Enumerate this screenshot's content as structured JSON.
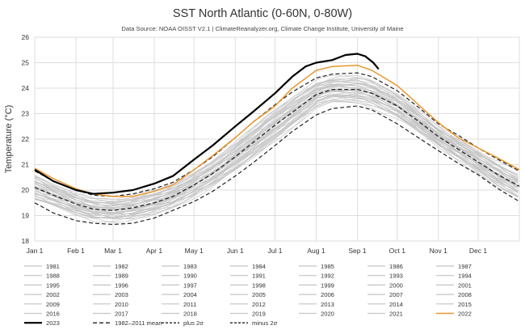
{
  "chart_data": {
    "type": "line",
    "title": "SST North Atlantic (0-60N, 0-80W)",
    "subtitle": "Data Source: NOAA OISST V2.1 | ClimateReanalyzer.org, Climate Change Institute, University of Maine",
    "ylabel": "Temperature (°C)",
    "xlabel": "",
    "ylim": [
      18,
      26
    ],
    "yticks": [
      18,
      19,
      20,
      21,
      22,
      23,
      24,
      25,
      26
    ],
    "xlim": [
      1,
      366
    ],
    "xticks": [
      {
        "label": "Jan 1",
        "day": 1
      },
      {
        "label": "Feb 1",
        "day": 32
      },
      {
        "label": "Mar 1",
        "day": 60
      },
      {
        "label": "Apr 1",
        "day": 91
      },
      {
        "label": "May 1",
        "day": 121
      },
      {
        "label": "Jun 1",
        "day": 152
      },
      {
        "label": "Jul 1",
        "day": 182
      },
      {
        "label": "Aug 1",
        "day": 213
      },
      {
        "label": "Sep 1",
        "day": 244
      },
      {
        "label": "Oct 1",
        "day": 274
      },
      {
        "label": "Nov 1",
        "day": 305
      },
      {
        "label": "Dec 1",
        "day": 335
      }
    ],
    "grid": true,
    "legend_position": "bottom",
    "gray_years": [
      "1981",
      "1982",
      "1983",
      "1984",
      "1985",
      "1986",
      "1987",
      "1988",
      "1989",
      "1990",
      "1991",
      "1992",
      "1993",
      "1994",
      "1995",
      "1996",
      "1997",
      "1998",
      "1999",
      "2000",
      "2001",
      "2002",
      "2003",
      "2004",
      "2005",
      "2006",
      "2007",
      "2008",
      "2009",
      "2010",
      "2011",
      "2012",
      "2013",
      "2014",
      "2015",
      "2016",
      "2017",
      "2018",
      "2019",
      "2020",
      "2021"
    ],
    "colors": {
      "gray": "#c4c4c4",
      "y2022": "#e8962e",
      "y2023": "#000000",
      "mean": "#222222"
    },
    "series": [
      {
        "name": "1982–2011 mean",
        "style": "dashed",
        "x": [
          1,
          15,
          32,
          45,
          60,
          75,
          91,
          105,
          121,
          135,
          152,
          165,
          182,
          195,
          213,
          225,
          244,
          255,
          274,
          290,
          305,
          320,
          335,
          350,
          366
        ],
        "values": [
          20.1,
          19.8,
          19.45,
          19.25,
          19.2,
          19.3,
          19.5,
          19.75,
          20.2,
          20.65,
          21.3,
          21.85,
          22.55,
          23.05,
          23.75,
          23.95,
          23.95,
          23.8,
          23.3,
          22.7,
          22.1,
          21.6,
          21.1,
          20.6,
          20.15
        ]
      },
      {
        "name": "plus 2σ",
        "style": "dashed",
        "x": [
          1,
          15,
          32,
          45,
          60,
          75,
          91,
          105,
          121,
          135,
          152,
          165,
          182,
          195,
          213,
          225,
          244,
          255,
          274,
          290,
          305,
          320,
          335,
          350,
          366
        ],
        "values": [
          20.75,
          20.35,
          20.0,
          19.8,
          19.75,
          19.85,
          20.05,
          20.3,
          20.8,
          21.3,
          22.05,
          22.65,
          23.35,
          23.85,
          24.4,
          24.55,
          24.6,
          24.45,
          23.9,
          23.25,
          22.6,
          22.15,
          21.65,
          21.2,
          20.75
        ]
      },
      {
        "name": "minus 2σ",
        "style": "dashed",
        "x": [
          1,
          15,
          32,
          45,
          60,
          75,
          91,
          105,
          121,
          135,
          152,
          165,
          182,
          195,
          213,
          225,
          244,
          255,
          274,
          290,
          305,
          320,
          335,
          350,
          366
        ],
        "values": [
          19.5,
          19.1,
          18.8,
          18.7,
          18.65,
          18.7,
          18.9,
          19.2,
          19.55,
          19.95,
          20.55,
          21.05,
          21.75,
          22.3,
          22.95,
          23.2,
          23.3,
          23.15,
          22.6,
          22.05,
          21.55,
          21.05,
          20.6,
          20.05,
          19.55
        ]
      },
      {
        "name": "2022",
        "style": "solid",
        "x": [
          1,
          15,
          32,
          45,
          60,
          75,
          91,
          105,
          121,
          135,
          152,
          165,
          182,
          195,
          213,
          225,
          244,
          255,
          274,
          290,
          305,
          320,
          335,
          350,
          366
        ],
        "values": [
          20.85,
          20.45,
          20.05,
          19.85,
          19.75,
          19.75,
          19.95,
          20.2,
          20.8,
          21.35,
          22.05,
          22.65,
          23.3,
          24.0,
          24.7,
          24.85,
          24.9,
          24.7,
          24.1,
          23.35,
          22.65,
          22.05,
          21.65,
          21.25,
          20.8
        ]
      },
      {
        "name": "2023",
        "style": "solid",
        "x": [
          1,
          15,
          32,
          45,
          60,
          75,
          91,
          105,
          121,
          135,
          152,
          165,
          182,
          195,
          205,
          213,
          225,
          235,
          244,
          250,
          256,
          260
        ],
        "values": [
          20.8,
          20.35,
          20.0,
          19.85,
          19.9,
          20.0,
          20.25,
          20.55,
          21.2,
          21.75,
          22.5,
          23.05,
          23.8,
          24.45,
          24.85,
          25.0,
          25.1,
          25.3,
          25.35,
          25.25,
          25.0,
          24.75
        ]
      }
    ],
    "legend": {
      "gray_labels": [
        "1981",
        "1982",
        "1983",
        "1984",
        "1985",
        "1986",
        "1987",
        "1988",
        "1989",
        "1990",
        "1991",
        "1992",
        "1993",
        "1994",
        "1995",
        "1996",
        "1997",
        "1998",
        "1999",
        "2000",
        "2001",
        "2002",
        "2003",
        "2004",
        "2005",
        "2006",
        "2007",
        "2008",
        "2009",
        "2010",
        "2011",
        "2012",
        "2013",
        "2014",
        "2015",
        "2016",
        "2017",
        "2018",
        "2019",
        "2020",
        "2021"
      ],
      "highlight_labels": [
        "2022",
        "2023",
        "1982–2011 mean",
        "plus 2σ",
        "minus 2σ"
      ]
    }
  }
}
